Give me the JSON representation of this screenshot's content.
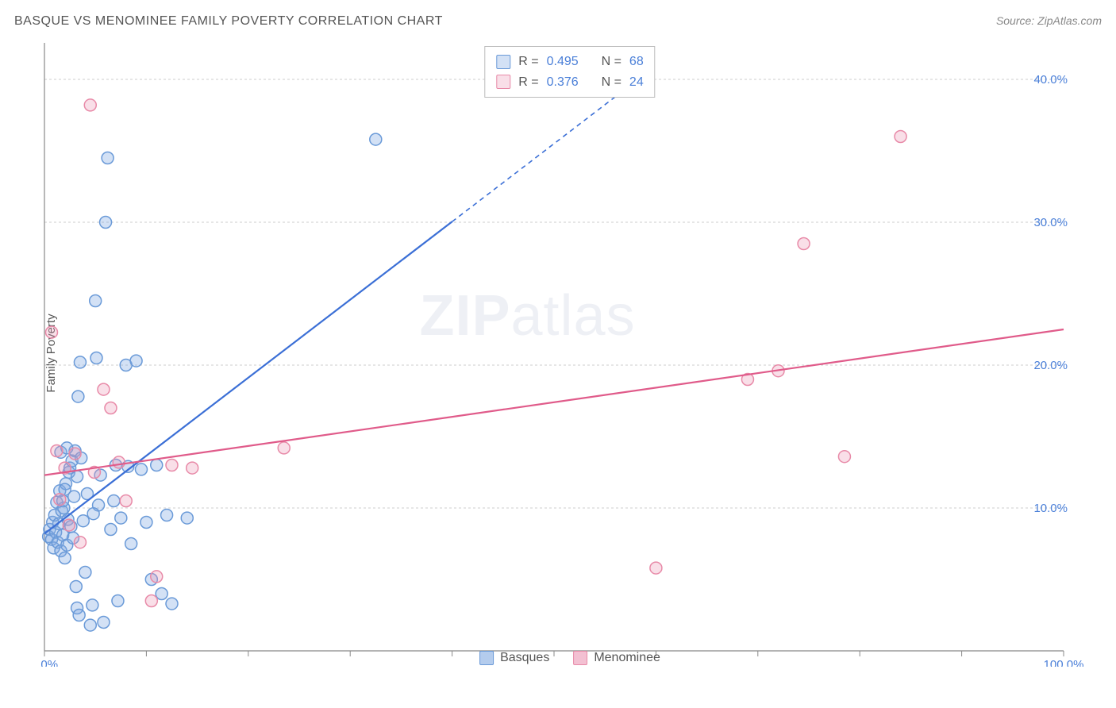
{
  "title": "BASQUE VS MENOMINEE FAMILY POVERTY CORRELATION CHART",
  "source": "Source: ZipAtlas.com",
  "watermark_bold": "ZIP",
  "watermark_light": "atlas",
  "ylabel": "Family Poverty",
  "chart": {
    "type": "scatter",
    "background_color": "#ffffff",
    "grid_color": "#cccccc",
    "axis_color": "#888888",
    "tick_label_color": "#4a7fd8",
    "xlim": [
      0,
      100
    ],
    "ylim": [
      0,
      42
    ],
    "x_ticks": [
      0,
      10,
      20,
      30,
      40,
      50,
      60,
      70,
      80,
      90,
      100
    ],
    "x_tick_labels": {
      "0": "0.0%",
      "100": "100.0%"
    },
    "y_ticks": [
      10,
      20,
      30,
      40
    ],
    "y_tick_labels": {
      "10": "10.0%",
      "20": "20.0%",
      "30": "30.0%",
      "40": "40.0%"
    },
    "marker_radius": 7.5,
    "marker_stroke_width": 1.5,
    "line_width": 2.2,
    "series": [
      {
        "name": "Basques",
        "fill": "rgba(130,170,225,0.35)",
        "stroke": "#6a9ad8",
        "line_color": "#3b6fd6",
        "R": "0.495",
        "N": "68",
        "regression": {
          "x1": 0,
          "y1": 8.2,
          "x2": 50,
          "y2": 35.5,
          "dash_from_x": 40
        },
        "points": [
          [
            0.4,
            8.0
          ],
          [
            0.5,
            8.5
          ],
          [
            0.7,
            7.8
          ],
          [
            0.8,
            9.0
          ],
          [
            0.9,
            7.2
          ],
          [
            1.0,
            9.5
          ],
          [
            1.1,
            8.3
          ],
          [
            1.2,
            10.4
          ],
          [
            1.3,
            7.6
          ],
          [
            1.4,
            8.9
          ],
          [
            1.5,
            11.2
          ],
          [
            1.6,
            7.0
          ],
          [
            1.7,
            9.8
          ],
          [
            1.8,
            8.1
          ],
          [
            1.9,
            10.0
          ],
          [
            2.0,
            6.5
          ],
          [
            2.1,
            11.7
          ],
          [
            2.2,
            7.4
          ],
          [
            2.3,
            9.2
          ],
          [
            2.4,
            12.5
          ],
          [
            2.5,
            12.8
          ],
          [
            2.6,
            8.7
          ],
          [
            2.7,
            13.3
          ],
          [
            2.8,
            7.9
          ],
          [
            3.0,
            14.0
          ],
          [
            3.1,
            4.5
          ],
          [
            3.2,
            3.0
          ],
          [
            3.4,
            2.5
          ],
          [
            3.5,
            20.2
          ],
          [
            3.6,
            13.5
          ],
          [
            3.8,
            9.1
          ],
          [
            4.0,
            5.5
          ],
          [
            4.2,
            11.0
          ],
          [
            4.5,
            1.8
          ],
          [
            4.7,
            3.2
          ],
          [
            5.0,
            24.5
          ],
          [
            5.1,
            20.5
          ],
          [
            5.3,
            10.2
          ],
          [
            5.8,
            2.0
          ],
          [
            6.0,
            30.0
          ],
          [
            6.2,
            34.5
          ],
          [
            6.5,
            8.5
          ],
          [
            7.0,
            13.0
          ],
          [
            7.2,
            3.5
          ],
          [
            7.5,
            9.3
          ],
          [
            8.0,
            20.0
          ],
          [
            8.2,
            12.9
          ],
          [
            8.5,
            7.5
          ],
          [
            9.0,
            20.3
          ],
          [
            9.5,
            12.7
          ],
          [
            10.0,
            9.0
          ],
          [
            10.5,
            5.0
          ],
          [
            11.0,
            13.0
          ],
          [
            11.5,
            4.0
          ],
          [
            12.0,
            9.5
          ],
          [
            12.5,
            3.3
          ],
          [
            14.0,
            9.3
          ],
          [
            32.5,
            35.8
          ],
          [
            3.3,
            17.8
          ],
          [
            2.9,
            10.8
          ],
          [
            1.6,
            13.9
          ],
          [
            2.2,
            14.2
          ],
          [
            4.8,
            9.6
          ],
          [
            5.5,
            12.3
          ],
          [
            6.8,
            10.5
          ],
          [
            3.2,
            12.2
          ],
          [
            2.0,
            11.3
          ],
          [
            1.8,
            10.5
          ]
        ]
      },
      {
        "name": "Menominee",
        "fill": "rgba(235,150,180,0.30)",
        "stroke": "#e88aa8",
        "line_color": "#e05b8a",
        "R": "0.376",
        "N": "24",
        "regression": {
          "x1": 0,
          "y1": 12.3,
          "x2": 100,
          "y2": 22.5
        },
        "points": [
          [
            0.7,
            22.3
          ],
          [
            1.2,
            14.0
          ],
          [
            1.5,
            10.6
          ],
          [
            2.0,
            12.8
          ],
          [
            2.4,
            8.8
          ],
          [
            3.0,
            13.8
          ],
          [
            3.5,
            7.6
          ],
          [
            4.5,
            38.2
          ],
          [
            5.8,
            18.3
          ],
          [
            6.5,
            17.0
          ],
          [
            7.3,
            13.2
          ],
          [
            8.0,
            10.5
          ],
          [
            10.5,
            3.5
          ],
          [
            11.0,
            5.2
          ],
          [
            12.5,
            13.0
          ],
          [
            14.5,
            12.8
          ],
          [
            23.5,
            14.2
          ],
          [
            60.0,
            5.8
          ],
          [
            69.0,
            19.0
          ],
          [
            72.0,
            19.6
          ],
          [
            74.5,
            28.5
          ],
          [
            78.5,
            13.6
          ],
          [
            84.0,
            36.0
          ],
          [
            4.9,
            12.5
          ]
        ]
      }
    ]
  },
  "legend_bottom": [
    {
      "label": "Basques",
      "fill": "rgba(130,170,225,0.6)",
      "stroke": "#6a9ad8"
    },
    {
      "label": "Menominee",
      "fill": "rgba(235,150,180,0.6)",
      "stroke": "#e88aa8"
    }
  ]
}
